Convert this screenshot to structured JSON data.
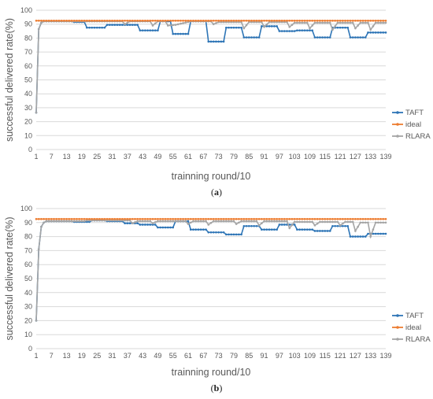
{
  "chart_data": [
    {
      "type": "line",
      "caption_letter": "a",
      "xlabel": "trainning round/10",
      "ylabel": "successful delivered rate(%)",
      "ylim": [
        0,
        100
      ],
      "yticks": [
        0,
        10,
        20,
        30,
        40,
        50,
        60,
        70,
        80,
        90,
        100
      ],
      "x_tick_labels": [
        "1",
        "7",
        "13",
        "19",
        "25",
        "31",
        "37",
        "43",
        "49",
        "55",
        "61",
        "67",
        "73",
        "79",
        "85",
        "91",
        "97",
        "103",
        "109",
        "115",
        "121",
        "127",
        "133",
        "139"
      ],
      "grid": true,
      "legend": "right",
      "series": [
        {
          "name": "TAFT",
          "color": "#2e75b6",
          "segments": [
            [
              1,
              26.5
            ],
            [
              2,
              86.5
            ],
            [
              3,
              91
            ],
            [
              4,
              92
            ],
            [
              15,
              92
            ],
            [
              16,
              91.5
            ],
            [
              20,
              91.5
            ],
            [
              21,
              87.5
            ],
            [
              28,
              87.5
            ],
            [
              29,
              89.5
            ],
            [
              41,
              89.5
            ],
            [
              42,
              85.5
            ],
            [
              49,
              85.5
            ],
            [
              50,
              92
            ],
            [
              54,
              92
            ],
            [
              55,
              83
            ],
            [
              61,
              83
            ],
            [
              62,
              92
            ],
            [
              68,
              92
            ],
            [
              69,
              77.5
            ],
            [
              75,
              77.5
            ],
            [
              76,
              87.5
            ],
            [
              82,
              87.5
            ],
            [
              83,
              80.5
            ],
            [
              89,
              80.5
            ],
            [
              90,
              88.5
            ],
            [
              96,
              88.5
            ],
            [
              97,
              85
            ],
            [
              103,
              85
            ],
            [
              104,
              85.5
            ],
            [
              110,
              85.5
            ],
            [
              111,
              80.5
            ],
            [
              117,
              80.5
            ],
            [
              118,
              87.5
            ],
            [
              124,
              87.5
            ],
            [
              125,
              80.5
            ],
            [
              131,
              80.5
            ],
            [
              132,
              84
            ],
            [
              139,
              84
            ]
          ]
        },
        {
          "name": "ideal",
          "color": "#ed7d31",
          "segments": [
            [
              1,
              92.5
            ],
            [
              139,
              92.5
            ]
          ]
        },
        {
          "name": "RLARA",
          "color": "#a5a5a5",
          "segments": [
            [
              1,
              26.5
            ],
            [
              2,
              86.5
            ],
            [
              3,
              91
            ],
            [
              4,
              92
            ],
            [
              15,
              92
            ],
            [
              16,
              92
            ],
            [
              35,
              92
            ],
            [
              36,
              90
            ],
            [
              38,
              92
            ],
            [
              46,
              92
            ],
            [
              47,
              89
            ],
            [
              49,
              92
            ],
            [
              52,
              92
            ],
            [
              53,
              89
            ],
            [
              56,
              89.5
            ],
            [
              62,
              92
            ],
            [
              70,
              92
            ],
            [
              71,
              90
            ],
            [
              73,
              91.5
            ],
            [
              82,
              91.5
            ],
            [
              83,
              87
            ],
            [
              85,
              91.5
            ],
            [
              90,
              91.5
            ],
            [
              91,
              88
            ],
            [
              93,
              91.5
            ],
            [
              100,
              91.5
            ],
            [
              101,
              88
            ],
            [
              103,
              91
            ],
            [
              108,
              91
            ],
            [
              109,
              87
            ],
            [
              111,
              91
            ],
            [
              117,
              91
            ],
            [
              118,
              86
            ],
            [
              120,
              91
            ],
            [
              126,
              91
            ],
            [
              127,
              87
            ],
            [
              129,
              91
            ],
            [
              132,
              91
            ],
            [
              133,
              86
            ],
            [
              135,
              91
            ],
            [
              139,
              91
            ]
          ]
        }
      ]
    },
    {
      "type": "line",
      "caption_letter": "b",
      "xlabel": "trainning round/10",
      "ylabel": "successful delivered rate(%)",
      "ylim": [
        0,
        100
      ],
      "yticks": [
        0,
        10,
        20,
        30,
        40,
        50,
        60,
        70,
        80,
        90,
        100
      ],
      "x_tick_labels": [
        "1",
        "7",
        "13",
        "19",
        "25",
        "31",
        "37",
        "43",
        "49",
        "55",
        "61",
        "67",
        "73",
        "79",
        "85",
        "91",
        "97",
        "103",
        "109",
        "115",
        "121",
        "127",
        "133",
        "139"
      ],
      "grid": true,
      "legend": "right",
      "series": [
        {
          "name": "TAFT",
          "color": "#2e75b6",
          "segments": [
            [
              1,
              20
            ],
            [
              2,
              71
            ],
            [
              3,
              87
            ],
            [
              4,
              90
            ],
            [
              5,
              91
            ],
            [
              15,
              91
            ],
            [
              16,
              90.5
            ],
            [
              22,
              90.5
            ],
            [
              23,
              91.5
            ],
            [
              28,
              91.5
            ],
            [
              29,
              91
            ],
            [
              35,
              91
            ],
            [
              36,
              89.5
            ],
            [
              41,
              89.5
            ],
            [
              42,
              88.5
            ],
            [
              48,
              88.5
            ],
            [
              49,
              86.5
            ],
            [
              55,
              86.5
            ],
            [
              56,
              91
            ],
            [
              61,
              91
            ],
            [
              62,
              85
            ],
            [
              68,
              85
            ],
            [
              69,
              83
            ],
            [
              75,
              83
            ],
            [
              76,
              81.5
            ],
            [
              82,
              81.5
            ],
            [
              83,
              87.5
            ],
            [
              89,
              87.5
            ],
            [
              90,
              85
            ],
            [
              96,
              85
            ],
            [
              97,
              88.5
            ],
            [
              103,
              88.5
            ],
            [
              104,
              85
            ],
            [
              110,
              85
            ],
            [
              111,
              84
            ],
            [
              117,
              84
            ],
            [
              118,
              87.5
            ],
            [
              124,
              87.5
            ],
            [
              125,
              80
            ],
            [
              131,
              80
            ],
            [
              132,
              82
            ],
            [
              139,
              82
            ]
          ]
        },
        {
          "name": "ideal",
          "color": "#ed7d31",
          "segments": [
            [
              1,
              92.5
            ],
            [
              139,
              92.5
            ]
          ]
        },
        {
          "name": "RLARA",
          "color": "#a5a5a5",
          "segments": [
            [
              1,
              20
            ],
            [
              2,
              71
            ],
            [
              3,
              87
            ],
            [
              4,
              90
            ],
            [
              5,
              91
            ],
            [
              20,
              91
            ],
            [
              21,
              91.5
            ],
            [
              38,
              91.5
            ],
            [
              39,
              89.5
            ],
            [
              41,
              91
            ],
            [
              46,
              91
            ],
            [
              47,
              89.5
            ],
            [
              49,
              91
            ],
            [
              60,
              91
            ],
            [
              61,
              89
            ],
            [
              63,
              91
            ],
            [
              68,
              91
            ],
            [
              69,
              88.5
            ],
            [
              71,
              91
            ],
            [
              79,
              91
            ],
            [
              80,
              89
            ],
            [
              82,
              91
            ],
            [
              88,
              91
            ],
            [
              89,
              88
            ],
            [
              91,
              91
            ],
            [
              100,
              91
            ],
            [
              101,
              86
            ],
            [
              103,
              90.5
            ],
            [
              110,
              90.5
            ],
            [
              111,
              88
            ],
            [
              113,
              90.5
            ],
            [
              120,
              90.5
            ],
            [
              121,
              88
            ],
            [
              123,
              90.5
            ],
            [
              126,
              90.5
            ],
            [
              127,
              84
            ],
            [
              129,
              90
            ],
            [
              132,
              90
            ],
            [
              133,
              80
            ],
            [
              135,
              90
            ],
            [
              139,
              90
            ]
          ]
        }
      ]
    }
  ]
}
